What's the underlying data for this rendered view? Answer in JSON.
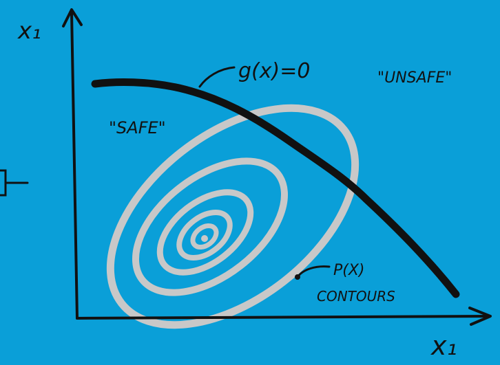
{
  "colors": {
    "background": "#0a9fd8",
    "ink": "#111111",
    "contour": "#c8c8c8"
  },
  "labels": {
    "y_axis": "x₁",
    "x_axis": "x₁",
    "limit_state": "g(x)=0",
    "unsafe": "\"UNSAFE\"",
    "safe": "\"SAFE\"",
    "pdf_line1": "P(X)",
    "pdf_line2": "CONTOURS"
  }
}
